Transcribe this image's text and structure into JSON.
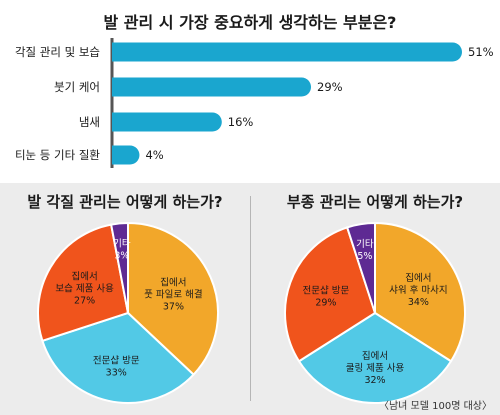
{
  "footnote": "〈남녀 모델 100명 대상〉",
  "colors": {
    "bar": "#1aa6cf",
    "axis": "#555555",
    "orange": "#f2a72a",
    "cyan": "#52c9e6",
    "red": "#f0541c",
    "purple": "#5e2a93"
  },
  "chart_data": [
    {
      "type": "bar",
      "orientation": "horizontal",
      "title": "발 관리 시 가장 중요하게 생각하는 부분은?",
      "categories": [
        "각질 관리 및 보습",
        "붓기 케어",
        "냄새",
        "티눈 등 기타 질환"
      ],
      "values": [
        51,
        29,
        16,
        4
      ],
      "value_labels": [
        "51%",
        "29%",
        "16%",
        "4%"
      ],
      "xlim": [
        0,
        51
      ],
      "grid": false
    },
    {
      "type": "pie",
      "title": "발 각질 관리는 어떻게 하는가?",
      "slices": [
        {
          "label": [
            "집에서",
            "풋 파일로 해결"
          ],
          "value": 37,
          "value_label": "37%",
          "color": "#f2a72a"
        },
        {
          "label": [
            "전문샵 방문"
          ],
          "value": 33,
          "value_label": "33%",
          "color": "#52c9e6"
        },
        {
          "label": [
            "집에서",
            "보습 제품 사용"
          ],
          "value": 27,
          "value_label": "27%",
          "color": "#f0541c"
        },
        {
          "label": [
            "기타"
          ],
          "value": 3,
          "value_label": "3%",
          "color": "#5e2a93"
        }
      ]
    },
    {
      "type": "pie",
      "title": "부종 관리는 어떻게 하는가?",
      "slices": [
        {
          "label": [
            "집에서",
            "샤워 후 마사지"
          ],
          "value": 34,
          "value_label": "34%",
          "color": "#f2a72a"
        },
        {
          "label": [
            "집에서",
            "쿨링 제품 사용"
          ],
          "value": 32,
          "value_label": "32%",
          "color": "#52c9e6"
        },
        {
          "label": [
            "전문샵 방문"
          ],
          "value": 29,
          "value_label": "29%",
          "color": "#f0541c"
        },
        {
          "label": [
            "기타"
          ],
          "value": 5,
          "value_label": "5%",
          "color": "#5e2a93"
        }
      ]
    }
  ]
}
